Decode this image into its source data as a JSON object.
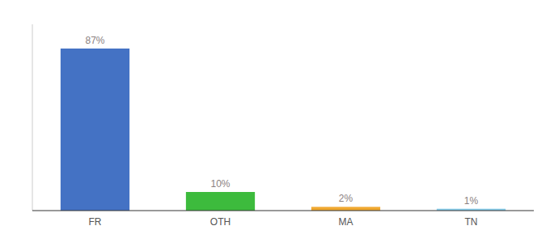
{
  "chart_data": {
    "type": "bar",
    "categories": [
      "FR",
      "OTH",
      "MA",
      "TN"
    ],
    "values": [
      87,
      10,
      2,
      1
    ],
    "value_labels": [
      "87%",
      "10%",
      "2%",
      "1%"
    ],
    "colors": [
      "#4472c4",
      "#3dbb3d",
      "#f0a830",
      "#87ceeb"
    ],
    "ylim": [
      0,
      100
    ],
    "data_labels": true,
    "tick_labels": "x",
    "grid": false
  }
}
